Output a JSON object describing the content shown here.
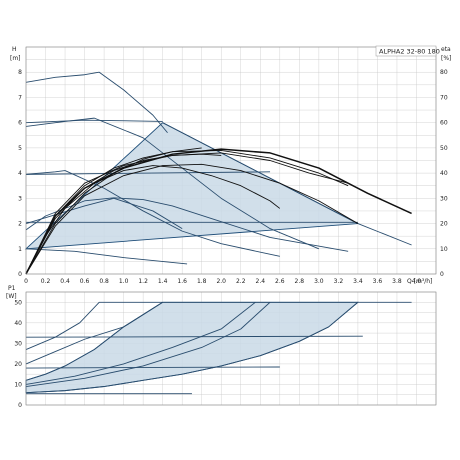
{
  "model_label": "ALPHA2 32-80 180",
  "colors": {
    "grid": "#c8c8c8",
    "band_fill": "#c9d9e6",
    "band_edge": "#1f4e79",
    "curve": "#2a4d6e",
    "eta": "#111111"
  },
  "chart_data": [
    {
      "type": "line",
      "x_label": "Q [m³/h]",
      "x_ticks": [
        "0",
        "0.2",
        "0.4",
        "0.6",
        "0.8",
        "1.0",
        "1.2",
        "1.4",
        "1.6",
        "1.8",
        "2.0",
        "2.2",
        "2.4",
        "2.6",
        "2.8",
        "3.0",
        "3.2",
        "3.4",
        "3.6",
        "3.8",
        "4.0"
      ],
      "xlim": [
        0,
        4.2
      ],
      "y_label": "H",
      "y_unit": "[m]",
      "y_ticks": [
        "0",
        "1",
        "2",
        "3",
        "4",
        "5",
        "6",
        "7",
        "8"
      ],
      "ylim": [
        0,
        9
      ],
      "y2_label": "eta",
      "y2_unit": "[%]",
      "y2_ticks": [
        "0",
        "10",
        "20",
        "30",
        "40",
        "50",
        "60",
        "70",
        "80"
      ],
      "y2lim": [
        0,
        90
      ],
      "grid": true,
      "shaded_region": [
        [
          0,
          1
        ],
        [
          1.4,
          6
        ],
        [
          3.4,
          2
        ],
        [
          0,
          1
        ]
      ],
      "series": [
        {
          "points": [
            [
              0,
              7.6
            ],
            [
              0.3,
              7.8
            ],
            [
              0.6,
              7.9
            ],
            [
              0.75,
              8.0
            ],
            [
              1.0,
              7.3
            ],
            [
              1.3,
              6.3
            ],
            [
              1.45,
              5.6
            ]
          ]
        },
        {
          "points": [
            [
              0,
              6.0
            ],
            [
              0.6,
              6.1
            ],
            [
              1.4,
              6.05
            ]
          ]
        },
        {
          "points": [
            [
              0,
              5.85
            ],
            [
              0.4,
              6.05
            ],
            [
              0.7,
              6.18
            ],
            [
              1.2,
              5.4
            ],
            [
              1.6,
              4.2
            ],
            [
              2.0,
              3.0
            ],
            [
              2.5,
              1.8
            ],
            [
              3.0,
              1.0
            ]
          ]
        },
        {
          "points": [
            [
              0,
              3.95
            ],
            [
              0.3,
              4.05
            ],
            [
              0.4,
              4.1
            ],
            [
              0.8,
              3.4
            ],
            [
              1.2,
              2.5
            ],
            [
              1.6,
              1.7
            ],
            [
              2.0,
              1.2
            ],
            [
              2.6,
              0.7
            ]
          ]
        },
        {
          "points": [
            [
              0,
              3.95
            ],
            [
              2.5,
              4.05
            ]
          ]
        },
        {
          "points": [
            [
              0,
              2.0
            ],
            [
              0.6,
              2.7
            ],
            [
              0.9,
              3.0
            ],
            [
              1.3,
              2.5
            ],
            [
              1.6,
              1.8
            ]
          ]
        },
        {
          "points": [
            [
              0,
              1.75
            ],
            [
              0.2,
              2.3
            ],
            [
              0.6,
              2.9
            ],
            [
              0.9,
              3.02
            ],
            [
              1.2,
              2.95
            ],
            [
              1.5,
              2.7
            ],
            [
              1.9,
              2.2
            ],
            [
              2.5,
              1.45
            ],
            [
              3.3,
              0.9
            ]
          ]
        },
        {
          "points": [
            [
              0,
              1.0
            ],
            [
              0.5,
              0.9
            ],
            [
              1.0,
              0.65
            ],
            [
              1.65,
              0.4
            ]
          ]
        },
        {
          "points": [
            [
              0,
              2.05
            ],
            [
              3.4,
              2.05
            ]
          ]
        },
        {
          "points": [
            [
              1.4,
              6.0
            ],
            [
              3.4,
              2.0
            ],
            [
              3.95,
              1.15
            ]
          ]
        },
        {
          "points": [
            [
              0,
              0
            ],
            [
              0.3,
              2.0
            ],
            [
              0.6,
              3.2
            ],
            [
              0.9,
              4.0
            ],
            [
              1.2,
              4.55
            ],
            [
              1.5,
              4.85
            ],
            [
              1.8,
              5.0
            ]
          ]
        },
        {
          "points": [
            [
              0,
              0
            ],
            [
              0.3,
              2.3
            ],
            [
              0.6,
              3.5
            ],
            [
              0.9,
              4.2
            ],
            [
              1.2,
              4.6
            ],
            [
              1.5,
              4.85
            ],
            [
              2.0,
              4.9
            ],
            [
              2.5,
              4.6
            ],
            [
              3.0,
              4.0
            ],
            [
              3.3,
              3.5
            ]
          ]
        },
        {
          "points": [
            [
              0,
              0
            ],
            [
              0.3,
              2.4
            ],
            [
              0.6,
              3.6
            ],
            [
              1.0,
              4.3
            ],
            [
              1.5,
              4.7
            ],
            [
              2.0,
              4.8
            ],
            [
              2.5,
              4.5
            ],
            [
              2.9,
              4.0
            ],
            [
              3.3,
              3.6
            ]
          ]
        },
        {
          "points": [
            [
              0,
              0
            ],
            [
              0.3,
              2.3
            ],
            [
              0.6,
              3.4
            ],
            [
              1.0,
              4.2
            ],
            [
              1.5,
              4.75
            ],
            [
              2.0,
              4.95
            ],
            [
              2.5,
              4.8
            ],
            [
              3.0,
              4.2
            ],
            [
              3.5,
              3.2
            ],
            [
              3.95,
              2.4
            ]
          ]
        },
        {
          "points": [
            [
              0,
              0
            ],
            [
              0.2,
              1.5
            ],
            [
              0.4,
              2.6
            ],
            [
              0.7,
              3.6
            ],
            [
              1.0,
              4.1
            ],
            [
              1.3,
              4.3
            ],
            [
              1.6,
              4.2
            ],
            [
              1.9,
              3.9
            ],
            [
              2.2,
              3.5
            ],
            [
              2.5,
              2.9
            ],
            [
              2.6,
              2.6
            ]
          ]
        },
        {
          "points": [
            [
              0,
              0
            ],
            [
              0.3,
              1.9
            ],
            [
              0.6,
              3.1
            ],
            [
              1.0,
              3.9
            ],
            [
              1.4,
              4.3
            ],
            [
              1.8,
              4.35
            ],
            [
              2.2,
              4.1
            ],
            [
              2.6,
              3.6
            ],
            [
              3.0,
              2.9
            ],
            [
              3.4,
              2.0
            ]
          ]
        },
        {
          "points": [
            [
              0,
              0
            ],
            [
              0.3,
              2.2
            ],
            [
              0.6,
              3.4
            ],
            [
              0.9,
              4.1
            ],
            [
              1.2,
              4.5
            ],
            [
              1.5,
              4.7
            ],
            [
              1.8,
              4.75
            ],
            [
              2.0,
              4.7
            ]
          ]
        }
      ]
    },
    {
      "type": "line",
      "y_label": "P1",
      "y_unit": "[W]",
      "y_ticks": [
        "0",
        "10",
        "20",
        "30",
        "40",
        "50"
      ],
      "ylim": [
        0,
        55
      ],
      "x_ticks": [],
      "xlim": [
        0,
        4.2
      ],
      "grid": true,
      "shaded_region": [
        [
          0,
          6
        ],
        [
          0.4,
          7
        ],
        [
          0.8,
          9
        ],
        [
          1.2,
          12
        ],
        [
          1.6,
          15
        ],
        [
          2.0,
          19
        ],
        [
          2.4,
          24
        ],
        [
          2.8,
          31
        ],
        [
          3.1,
          38
        ],
        [
          3.4,
          50
        ],
        [
          1.4,
          50
        ],
        [
          1.0,
          38
        ],
        [
          0.7,
          27
        ],
        [
          0.4,
          19
        ],
        [
          0.2,
          15
        ],
        [
          0,
          12
        ],
        [
          0,
          6
        ]
      ],
      "series": [
        {
          "points": [
            [
              0,
              27
            ],
            [
              0.3,
              33
            ],
            [
              0.55,
              40
            ],
            [
              0.75,
              50
            ],
            [
              3.95,
              50
            ]
          ]
        },
        {
          "points": [
            [
              0,
              20
            ],
            [
              0.3,
              26
            ],
            [
              0.6,
              32
            ],
            [
              1.0,
              38
            ],
            [
              1.4,
              50
            ]
          ]
        },
        {
          "points": [
            [
              0,
              12
            ],
            [
              0.2,
              15
            ],
            [
              0.4,
              19
            ],
            [
              0.7,
              27
            ],
            [
              1.0,
              38
            ],
            [
              1.4,
              50
            ]
          ]
        },
        {
          "points": [
            [
              0,
              10
            ],
            [
              0.5,
              14
            ],
            [
              1.0,
              20
            ],
            [
              1.5,
              28
            ],
            [
              2.0,
              37
            ],
            [
              2.35,
              50
            ]
          ]
        },
        {
          "points": [
            [
              0,
              9
            ],
            [
              0.6,
              13
            ],
            [
              1.2,
              19
            ],
            [
              1.8,
              28
            ],
            [
              2.2,
              37
            ],
            [
              2.5,
              50
            ]
          ]
        },
        {
          "points": [
            [
              0,
              6
            ],
            [
              0.4,
              7
            ],
            [
              0.8,
              9
            ],
            [
              1.2,
              12
            ],
            [
              1.6,
              15
            ],
            [
              2.0,
              19
            ],
            [
              2.4,
              24
            ],
            [
              2.8,
              31
            ],
            [
              3.1,
              38
            ],
            [
              3.4,
              50
            ]
          ]
        },
        {
          "points": [
            [
              0,
              18
            ],
            [
              2.6,
              18.5
            ]
          ]
        },
        {
          "points": [
            [
              0,
              33
            ],
            [
              3.45,
              33.5
            ]
          ]
        },
        {
          "points": [
            [
              0,
              5.5
            ],
            [
              1.7,
              5.5
            ]
          ]
        }
      ]
    }
  ]
}
